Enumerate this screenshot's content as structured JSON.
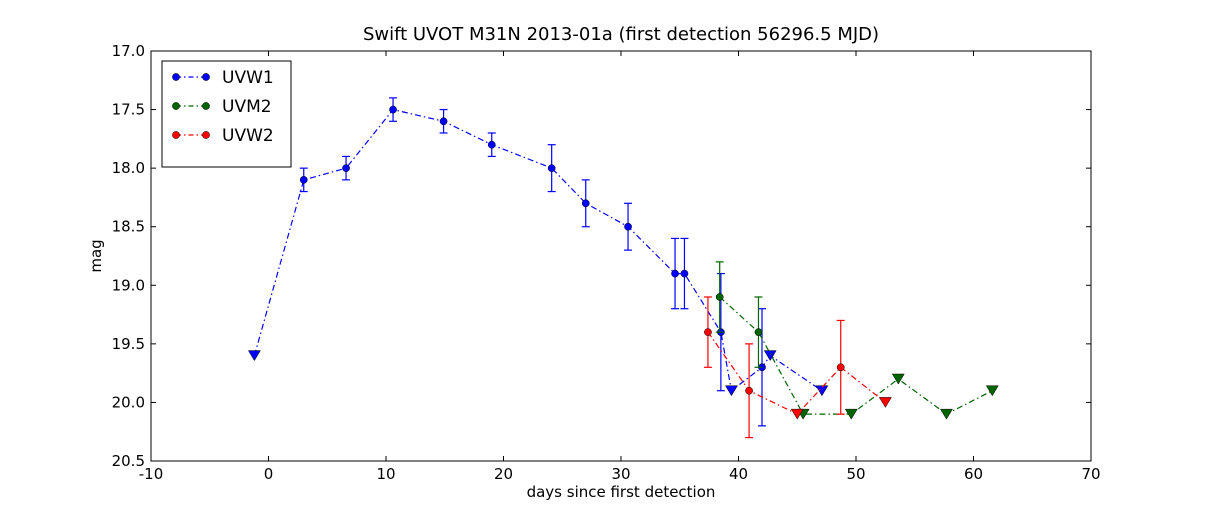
{
  "chart_data": {
    "type": "scatter",
    "title": "Swift UVOT M31N 2013-01a (first detection 56296.5 MJD)",
    "xlabel": "days since first detection",
    "ylabel": "mag",
    "xlim": [
      -10,
      70
    ],
    "ylim": [
      17.0,
      20.5
    ],
    "y_inverted": true,
    "x_ticks": [
      -10,
      0,
      10,
      20,
      30,
      40,
      50,
      60,
      70
    ],
    "y_ticks": [
      17.0,
      17.5,
      18.0,
      18.5,
      19.0,
      19.5,
      20.0,
      20.5
    ],
    "grid": false,
    "legend_position": "top-left",
    "legend_marker_note": "circles = detections with error bars, downward triangles = upper limits",
    "series": [
      {
        "name": "UVW1",
        "color": "#0000ff",
        "line_style": "dash-dot",
        "points": [
          {
            "x": -1.2,
            "y": 19.6,
            "upper_limit": true
          },
          {
            "x": 3.0,
            "y": 18.1,
            "err": 0.1
          },
          {
            "x": 6.6,
            "y": 18.0,
            "err": 0.1
          },
          {
            "x": 10.6,
            "y": 17.5,
            "err": 0.1
          },
          {
            "x": 14.9,
            "y": 17.6,
            "err": 0.1
          },
          {
            "x": 19.0,
            "y": 17.8,
            "err": 0.1
          },
          {
            "x": 24.1,
            "y": 18.0,
            "err": 0.2
          },
          {
            "x": 27.0,
            "y": 18.3,
            "err": 0.2
          },
          {
            "x": 30.6,
            "y": 18.5,
            "err": 0.2
          },
          {
            "x": 34.6,
            "y": 18.9,
            "err": 0.3
          },
          {
            "x": 35.4,
            "y": 18.9,
            "err": 0.3
          },
          {
            "x": 38.5,
            "y": 19.4,
            "err": 0.5
          },
          {
            "x": 39.4,
            "y": 19.9,
            "upper_limit": true
          },
          {
            "x": 42.0,
            "y": 19.7,
            "err": 0.5
          },
          {
            "x": 42.7,
            "y": 19.6,
            "upper_limit": true
          },
          {
            "x": 47.1,
            "y": 19.9,
            "upper_limit": true
          }
        ]
      },
      {
        "name": "UVM2",
        "color": "#006400",
        "line_style": "dash-dot",
        "points": [
          {
            "x": 38.4,
            "y": 19.1,
            "err": 0.3
          },
          {
            "x": 41.7,
            "y": 19.4,
            "err": 0.3
          },
          {
            "x": 45.5,
            "y": 20.1,
            "upper_limit": true
          },
          {
            "x": 49.6,
            "y": 20.1,
            "upper_limit": true
          },
          {
            "x": 53.6,
            "y": 19.8,
            "upper_limit": true
          },
          {
            "x": 57.7,
            "y": 20.1,
            "upper_limit": true
          },
          {
            "x": 61.6,
            "y": 19.9,
            "upper_limit": true
          }
        ]
      },
      {
        "name": "UVW2",
        "color": "#ff0000",
        "line_style": "dash-dot",
        "points": [
          {
            "x": 37.4,
            "y": 19.4,
            "err": 0.3
          },
          {
            "x": 40.9,
            "y": 19.9,
            "err": 0.4
          },
          {
            "x": 45.0,
            "y": 20.1,
            "upper_limit": true
          },
          {
            "x": 48.7,
            "y": 19.7,
            "err": 0.4
          },
          {
            "x": 52.5,
            "y": 20.0,
            "upper_limit": true
          }
        ]
      }
    ]
  }
}
